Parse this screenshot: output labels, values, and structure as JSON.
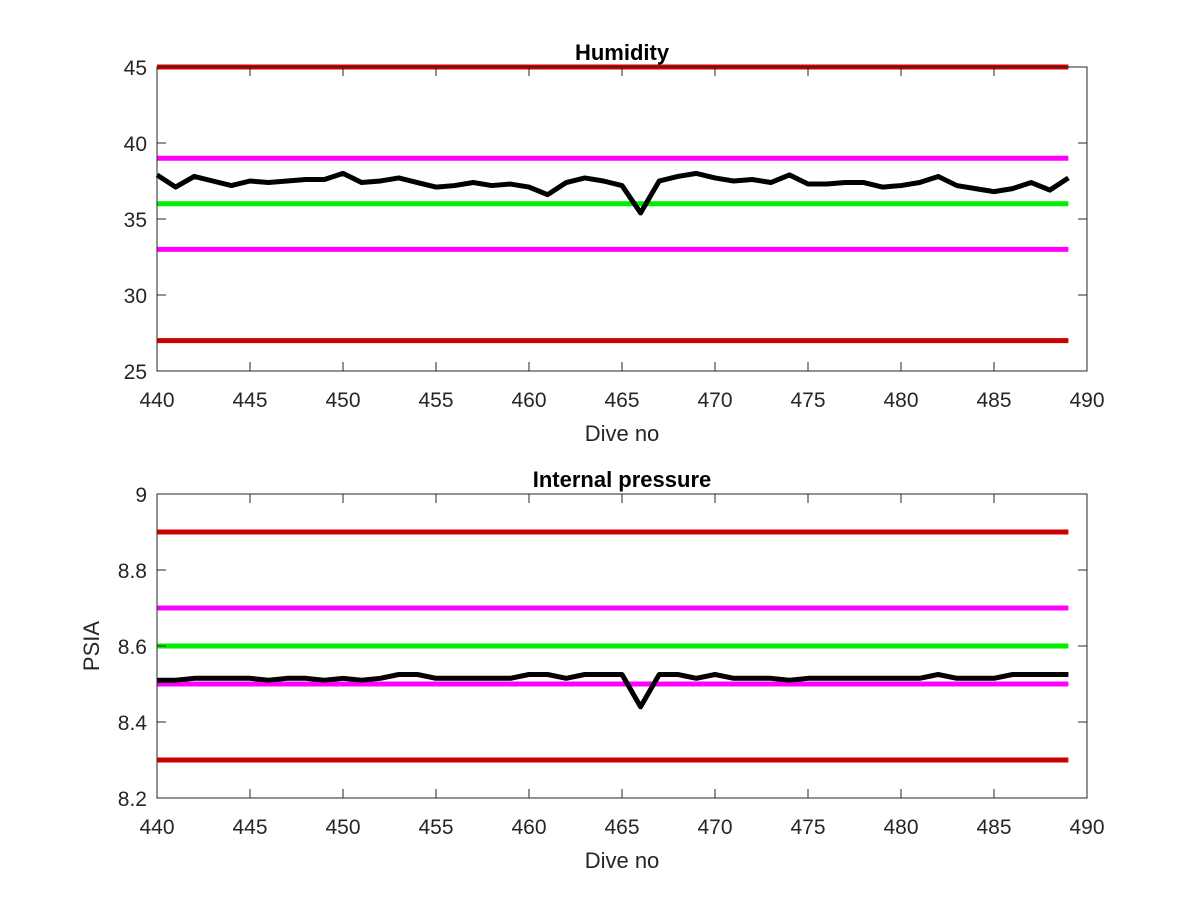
{
  "chart_data": [
    {
      "type": "line",
      "title": "Humidity",
      "xlabel": "Dive no",
      "ylabel": "",
      "xlim": [
        440,
        490
      ],
      "ylim": [
        25,
        45
      ],
      "xticks": [
        440,
        445,
        450,
        455,
        460,
        465,
        470,
        475,
        480,
        485,
        490
      ],
      "yticks": [
        25,
        30,
        35,
        40,
        45
      ],
      "grid": false,
      "threshold_lines": [
        {
          "value": 45,
          "color": "#cc0000"
        },
        {
          "value": 39,
          "color": "#ff00ff"
        },
        {
          "value": 36,
          "color": "#00ee00"
        },
        {
          "value": 33,
          "color": "#ff00ff"
        },
        {
          "value": 27,
          "color": "#cc0000"
        }
      ],
      "threshold_x_range": [
        440,
        489
      ],
      "series": [
        {
          "color": "#000000",
          "x": [
            440,
            441,
            442,
            443,
            444,
            445,
            446,
            447,
            448,
            449,
            450,
            451,
            452,
            453,
            454,
            455,
            456,
            457,
            458,
            459,
            460,
            461,
            462,
            463,
            464,
            465,
            466,
            467,
            468,
            469,
            470,
            471,
            472,
            473,
            474,
            475,
            476,
            477,
            478,
            479,
            480,
            481,
            482,
            483,
            484,
            485,
            486,
            487,
            488,
            489
          ],
          "y": [
            37.9,
            37.1,
            37.8,
            37.5,
            37.2,
            37.5,
            37.4,
            37.5,
            37.6,
            37.6,
            38.0,
            37.4,
            37.5,
            37.7,
            37.4,
            37.1,
            37.2,
            37.4,
            37.2,
            37.3,
            37.1,
            36.6,
            37.4,
            37.7,
            37.5,
            37.2,
            35.4,
            37.5,
            37.8,
            38.0,
            37.7,
            37.5,
            37.6,
            37.4,
            37.9,
            37.3,
            37.3,
            37.4,
            37.4,
            37.1,
            37.2,
            37.4,
            37.8,
            37.2,
            37.0,
            36.8,
            37.0,
            37.4,
            36.9,
            37.7
          ]
        }
      ]
    },
    {
      "type": "line",
      "title": "Internal pressure",
      "xlabel": "Dive no",
      "ylabel": "PSIA",
      "xlim": [
        440,
        490
      ],
      "ylim": [
        8.2,
        9.0
      ],
      "xticks": [
        440,
        445,
        450,
        455,
        460,
        465,
        470,
        475,
        480,
        485,
        490
      ],
      "yticks": [
        8.2,
        8.4,
        8.6,
        8.8,
        9.0
      ],
      "ytick_labels": [
        "8.2",
        "8.4",
        "8.6",
        "8.8",
        "9"
      ],
      "grid": false,
      "threshold_lines": [
        {
          "value": 8.9,
          "color": "#cc0000"
        },
        {
          "value": 8.7,
          "color": "#ff00ff"
        },
        {
          "value": 8.6,
          "color": "#00ee00"
        },
        {
          "value": 8.5,
          "color": "#ff00ff"
        },
        {
          "value": 8.3,
          "color": "#cc0000"
        }
      ],
      "threshold_x_range": [
        440,
        489
      ],
      "series": [
        {
          "color": "#000000",
          "x": [
            440,
            441,
            442,
            443,
            444,
            445,
            446,
            447,
            448,
            449,
            450,
            451,
            452,
            453,
            454,
            455,
            456,
            457,
            458,
            459,
            460,
            461,
            462,
            463,
            464,
            465,
            466,
            467,
            468,
            469,
            470,
            471,
            472,
            473,
            474,
            475,
            476,
            477,
            478,
            479,
            480,
            481,
            482,
            483,
            484,
            485,
            486,
            487,
            488,
            489
          ],
          "y": [
            8.51,
            8.51,
            8.515,
            8.515,
            8.515,
            8.515,
            8.51,
            8.515,
            8.515,
            8.51,
            8.515,
            8.51,
            8.515,
            8.525,
            8.525,
            8.515,
            8.515,
            8.515,
            8.515,
            8.515,
            8.525,
            8.525,
            8.515,
            8.525,
            8.525,
            8.525,
            8.44,
            8.525,
            8.525,
            8.515,
            8.525,
            8.515,
            8.515,
            8.515,
            8.51,
            8.515,
            8.515,
            8.515,
            8.515,
            8.515,
            8.515,
            8.515,
            8.525,
            8.515,
            8.515,
            8.515,
            8.525,
            8.525,
            8.525,
            8.525
          ]
        }
      ]
    }
  ]
}
